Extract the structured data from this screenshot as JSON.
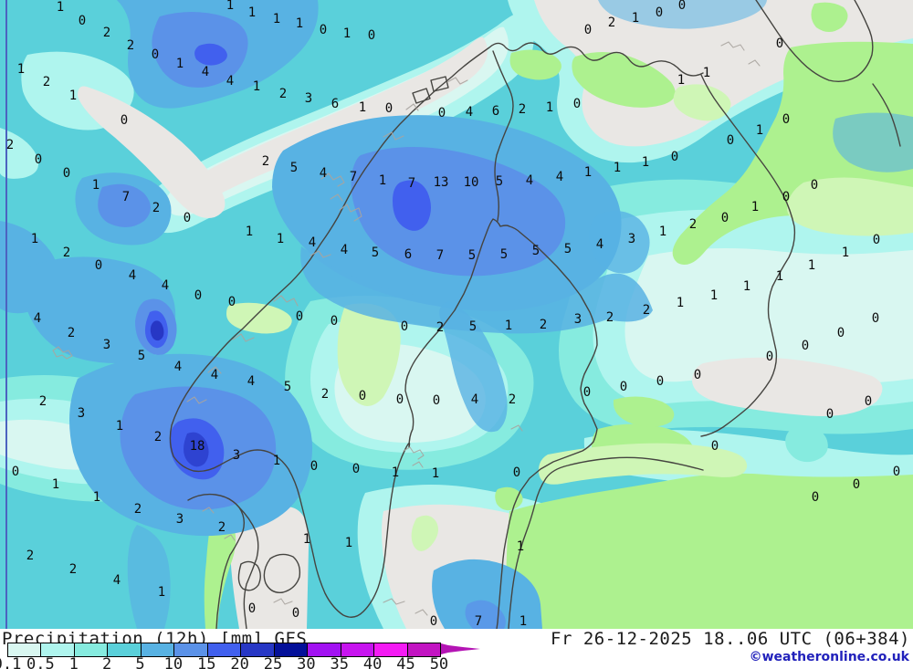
{
  "map": {
    "unit": "mm",
    "frame_color": "#4c63c0",
    "coast_color": "#454440",
    "coast_detail_color": "#a8a49e",
    "land_colors": {
      "dry_sea_gray": "#e9e7e4",
      "dry_land_green": "#adf18f",
      "dry_land_pale_green": "#cff6b6",
      "near_white": "#f3fbf9"
    },
    "values": [
      [
        66,
        7,
        "1"
      ],
      [
        252,
        5,
        "1"
      ],
      [
        276,
        13,
        "1"
      ],
      [
        303,
        20,
        "1"
      ],
      [
        328,
        25,
        "1"
      ],
      [
        90,
        22,
        "0"
      ],
      [
        117,
        35,
        "2"
      ],
      [
        143,
        49,
        "2"
      ],
      [
        170,
        59,
        "0"
      ],
      [
        197,
        69,
        "1"
      ],
      [
        225,
        78,
        "4"
      ],
      [
        252,
        88,
        "4"
      ],
      [
        281,
        94,
        "1"
      ],
      [
        310,
        102,
        "2"
      ],
      [
        338,
        107,
        "3"
      ],
      [
        23,
        75,
        "1"
      ],
      [
        51,
        89,
        "2"
      ],
      [
        80,
        104,
        "1"
      ],
      [
        136,
        131,
        "0"
      ],
      [
        11,
        158,
        "2"
      ],
      [
        42,
        174,
        "0"
      ],
      [
        73,
        189,
        "0"
      ],
      [
        105,
        202,
        "1"
      ],
      [
        138,
        215,
        "7"
      ],
      [
        171,
        227,
        "2"
      ],
      [
        291,
        176,
        "2"
      ],
      [
        322,
        183,
        "5"
      ],
      [
        354,
        32,
        "0"
      ],
      [
        380,
        36,
        "1"
      ],
      [
        407,
        38,
        "0"
      ],
      [
        644,
        32,
        "0"
      ],
      [
        670,
        24,
        "2"
      ],
      [
        367,
        113,
        "6"
      ],
      [
        397,
        117,
        "1"
      ],
      [
        426,
        118,
        "0"
      ],
      [
        484,
        123,
        "0"
      ],
      [
        514,
        122,
        "4"
      ],
      [
        543,
        121,
        "6"
      ],
      [
        572,
        119,
        "2"
      ],
      [
        602,
        117,
        "1"
      ],
      [
        632,
        113,
        "0"
      ],
      [
        354,
        189,
        "4"
      ],
      [
        387,
        193,
        "7"
      ],
      [
        419,
        197,
        "1"
      ],
      [
        451,
        200,
        "7"
      ],
      [
        483,
        199,
        "13"
      ],
      [
        516,
        199,
        "10"
      ],
      [
        547,
        198,
        "5"
      ],
      [
        580,
        197,
        "4"
      ],
      [
        613,
        193,
        "4"
      ],
      [
        644,
        188,
        "1"
      ],
      [
        747,
        5,
        "0"
      ],
      [
        722,
        13,
        "0"
      ],
      [
        696,
        19,
        "1"
      ],
      [
        854,
        47,
        "0"
      ],
      [
        774,
        79,
        "1"
      ],
      [
        746,
        87,
        "1"
      ],
      [
        861,
        130,
        "0"
      ],
      [
        832,
        142,
        "1"
      ],
      [
        800,
        153,
        "0"
      ],
      [
        739,
        171,
        "0"
      ],
      [
        707,
        177,
        "1"
      ],
      [
        676,
        183,
        "1"
      ],
      [
        892,
        202,
        "0"
      ],
      [
        861,
        215,
        "0"
      ],
      [
        827,
        226,
        "1"
      ],
      [
        205,
        238,
        "0"
      ],
      [
        273,
        253,
        "1"
      ],
      [
        307,
        261,
        "1"
      ],
      [
        38,
        261,
        "1"
      ],
      [
        73,
        276,
        "2"
      ],
      [
        108,
        290,
        "0"
      ],
      [
        145,
        301,
        "4"
      ],
      [
        181,
        312,
        "4"
      ],
      [
        217,
        323,
        "0"
      ],
      [
        254,
        330,
        "0"
      ],
      [
        328,
        346,
        "0"
      ],
      [
        41,
        348,
        "4"
      ],
      [
        78,
        364,
        "2"
      ],
      [
        117,
        377,
        "3"
      ],
      [
        155,
        389,
        "5"
      ],
      [
        195,
        401,
        "4"
      ],
      [
        235,
        410,
        "4"
      ],
      [
        275,
        417,
        "4"
      ],
      [
        315,
        423,
        "5"
      ],
      [
        47,
        439,
        "2"
      ],
      [
        89,
        452,
        "3"
      ],
      [
        342,
        265,
        "4"
      ],
      [
        377,
        273,
        "4"
      ],
      [
        411,
        276,
        "5"
      ],
      [
        447,
        278,
        "6"
      ],
      [
        482,
        279,
        "7"
      ],
      [
        517,
        279,
        "5"
      ],
      [
        552,
        278,
        "5"
      ],
      [
        587,
        274,
        "5"
      ],
      [
        622,
        272,
        "5"
      ],
      [
        657,
        267,
        "4"
      ],
      [
        366,
        351,
        "0"
      ],
      [
        443,
        357,
        "0"
      ],
      [
        482,
        358,
        "2"
      ],
      [
        518,
        357,
        "5"
      ],
      [
        557,
        356,
        "1"
      ],
      [
        595,
        355,
        "2"
      ],
      [
        633,
        349,
        "3"
      ],
      [
        668,
        347,
        "2"
      ],
      [
        356,
        431,
        "2"
      ],
      [
        397,
        433,
        "0"
      ],
      [
        438,
        437,
        "0"
      ],
      [
        478,
        438,
        "0"
      ],
      [
        520,
        437,
        "4"
      ],
      [
        561,
        437,
        "2"
      ],
      [
        643,
        429,
        "0"
      ],
      [
        692,
        261,
        "3"
      ],
      [
        726,
        253,
        "1"
      ],
      [
        759,
        245,
        "2"
      ],
      [
        794,
        238,
        "0"
      ],
      [
        960,
        262,
        "0"
      ],
      [
        926,
        276,
        "1"
      ],
      [
        889,
        290,
        "1"
      ],
      [
        854,
        302,
        "1"
      ],
      [
        818,
        313,
        "1"
      ],
      [
        782,
        323,
        "1"
      ],
      [
        745,
        331,
        "1"
      ],
      [
        708,
        339,
        "2"
      ],
      [
        959,
        348,
        "0"
      ],
      [
        921,
        364,
        "0"
      ],
      [
        882,
        378,
        "0"
      ],
      [
        843,
        390,
        "0"
      ],
      [
        764,
        410,
        "0"
      ],
      [
        723,
        417,
        "0"
      ],
      [
        683,
        423,
        "0"
      ],
      [
        951,
        439,
        "0"
      ],
      [
        909,
        453,
        "0"
      ],
      [
        131,
        466,
        "1"
      ],
      [
        173,
        478,
        "2"
      ],
      [
        216,
        488,
        "18"
      ],
      [
        259,
        498,
        "3"
      ],
      [
        303,
        504,
        "1"
      ],
      [
        17,
        516,
        "0"
      ],
      [
        61,
        530,
        "1"
      ],
      [
        106,
        544,
        "1"
      ],
      [
        151,
        557,
        "2"
      ],
      [
        197,
        568,
        "3"
      ],
      [
        243,
        577,
        "2"
      ],
      [
        336,
        590,
        "1"
      ],
      [
        33,
        608,
        "2"
      ],
      [
        80,
        623,
        "2"
      ],
      [
        128,
        635,
        "4"
      ],
      [
        177,
        648,
        "1"
      ],
      [
        276,
        666,
        "0"
      ],
      [
        324,
        671,
        "0"
      ],
      [
        344,
        510,
        "0"
      ],
      [
        390,
        513,
        "0"
      ],
      [
        433,
        517,
        "1"
      ],
      [
        477,
        518,
        "1"
      ],
      [
        566,
        517,
        "0"
      ],
      [
        382,
        594,
        "1"
      ],
      [
        570,
        598,
        "1"
      ],
      [
        475,
        680,
        "0"
      ],
      [
        524,
        680,
        "7"
      ],
      [
        573,
        680,
        "1"
      ],
      [
        783,
        488,
        "0"
      ],
      [
        982,
        516,
        "0"
      ],
      [
        938,
        530,
        "0"
      ],
      [
        893,
        544,
        "0"
      ]
    ]
  },
  "legend": {
    "title": "Precipitation (12h) [mm] GFS",
    "ticks": [
      "0.1",
      "0.5",
      "1",
      "2",
      "5",
      "10",
      "15",
      "20",
      "25",
      "30",
      "35",
      "40",
      "45",
      "50"
    ],
    "segment_colors": [
      "#d9f7f1",
      "#aff5ee",
      "#86ebdf",
      "#5ad0da",
      "#58b2e3",
      "#5b92e8",
      "#4160ee",
      "#2737c5",
      "#041099",
      "#a212f2",
      "#c714ef",
      "#f41bf4",
      "#c214c2"
    ],
    "arrow_color": "#b414b4"
  },
  "footer": {
    "datetime": "Fr 26-12-2025 18..06 UTC (06+384)",
    "copyright": "©weatheronline.co.uk"
  }
}
